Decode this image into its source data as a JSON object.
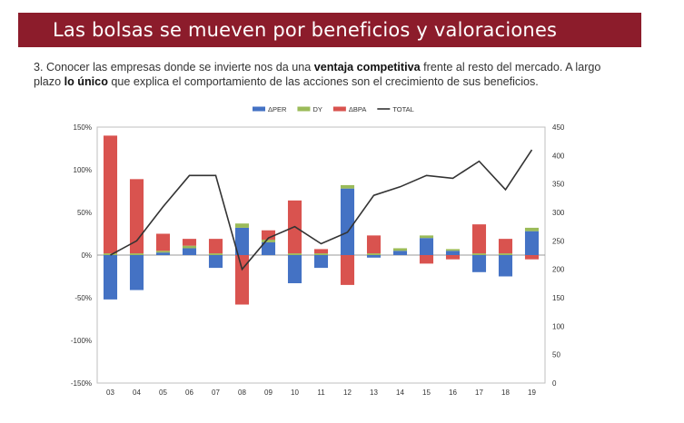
{
  "header": {
    "title": "Las bolsas se mueven por beneficios y valoraciones"
  },
  "intro": {
    "part1": "3. Conocer las empresas donde se invierte nos da una ",
    "bold1": "ventaja competitiva",
    "part2": " frente al resto del mercado. A largo plazo ",
    "bold2": "lo único",
    "part3": " que explica el comportamiento de las acciones son el crecimiento de sus beneficios."
  },
  "chart_data": {
    "type": "bar",
    "stacked": true,
    "categories": [
      "03",
      "04",
      "05",
      "06",
      "07",
      "08",
      "09",
      "10",
      "11",
      "12",
      "13",
      "14",
      "15",
      "16",
      "17",
      "18",
      "19"
    ],
    "series": [
      {
        "name": "ΔPER",
        "color": "#4472c4",
        "axis": "left",
        "values": [
          -52,
          -41,
          3,
          8,
          -15,
          32,
          15,
          -33,
          -15,
          78,
          -3,
          5,
          20,
          5,
          -20,
          -25,
          28
        ]
      },
      {
        "name": "DY",
        "color": "#9bbb59",
        "axis": "left",
        "values": [
          2,
          2,
          2,
          3,
          2,
          5,
          3,
          2,
          2,
          4,
          2,
          3,
          3,
          2,
          2,
          2,
          4
        ]
      },
      {
        "name": "ΔBPA",
        "color": "#d9534f",
        "axis": "left",
        "values": [
          138,
          87,
          20,
          8,
          17,
          -58,
          11,
          62,
          5,
          -35,
          21,
          0,
          -10,
          -5,
          34,
          17,
          -5
        ]
      },
      {
        "name": "TOTAL",
        "color": "#333333",
        "axis": "right",
        "type": "line",
        "values": [
          225,
          250,
          310,
          365,
          365,
          200,
          255,
          275,
          245,
          265,
          330,
          345,
          365,
          360,
          390,
          340,
          410
        ]
      }
    ],
    "left_axis": {
      "min": -150,
      "max": 150,
      "step": 50,
      "ticks": [
        "150%",
        "100%",
        "50%",
        "0%",
        "-50%",
        "-100%",
        "-150%"
      ]
    },
    "right_axis": {
      "min": 0,
      "max": 450,
      "step": 50,
      "ticks": [
        "450",
        "400",
        "350",
        "300",
        "250",
        "200",
        "150",
        "100",
        "50",
        "0"
      ]
    },
    "legend_position": "top-center"
  }
}
